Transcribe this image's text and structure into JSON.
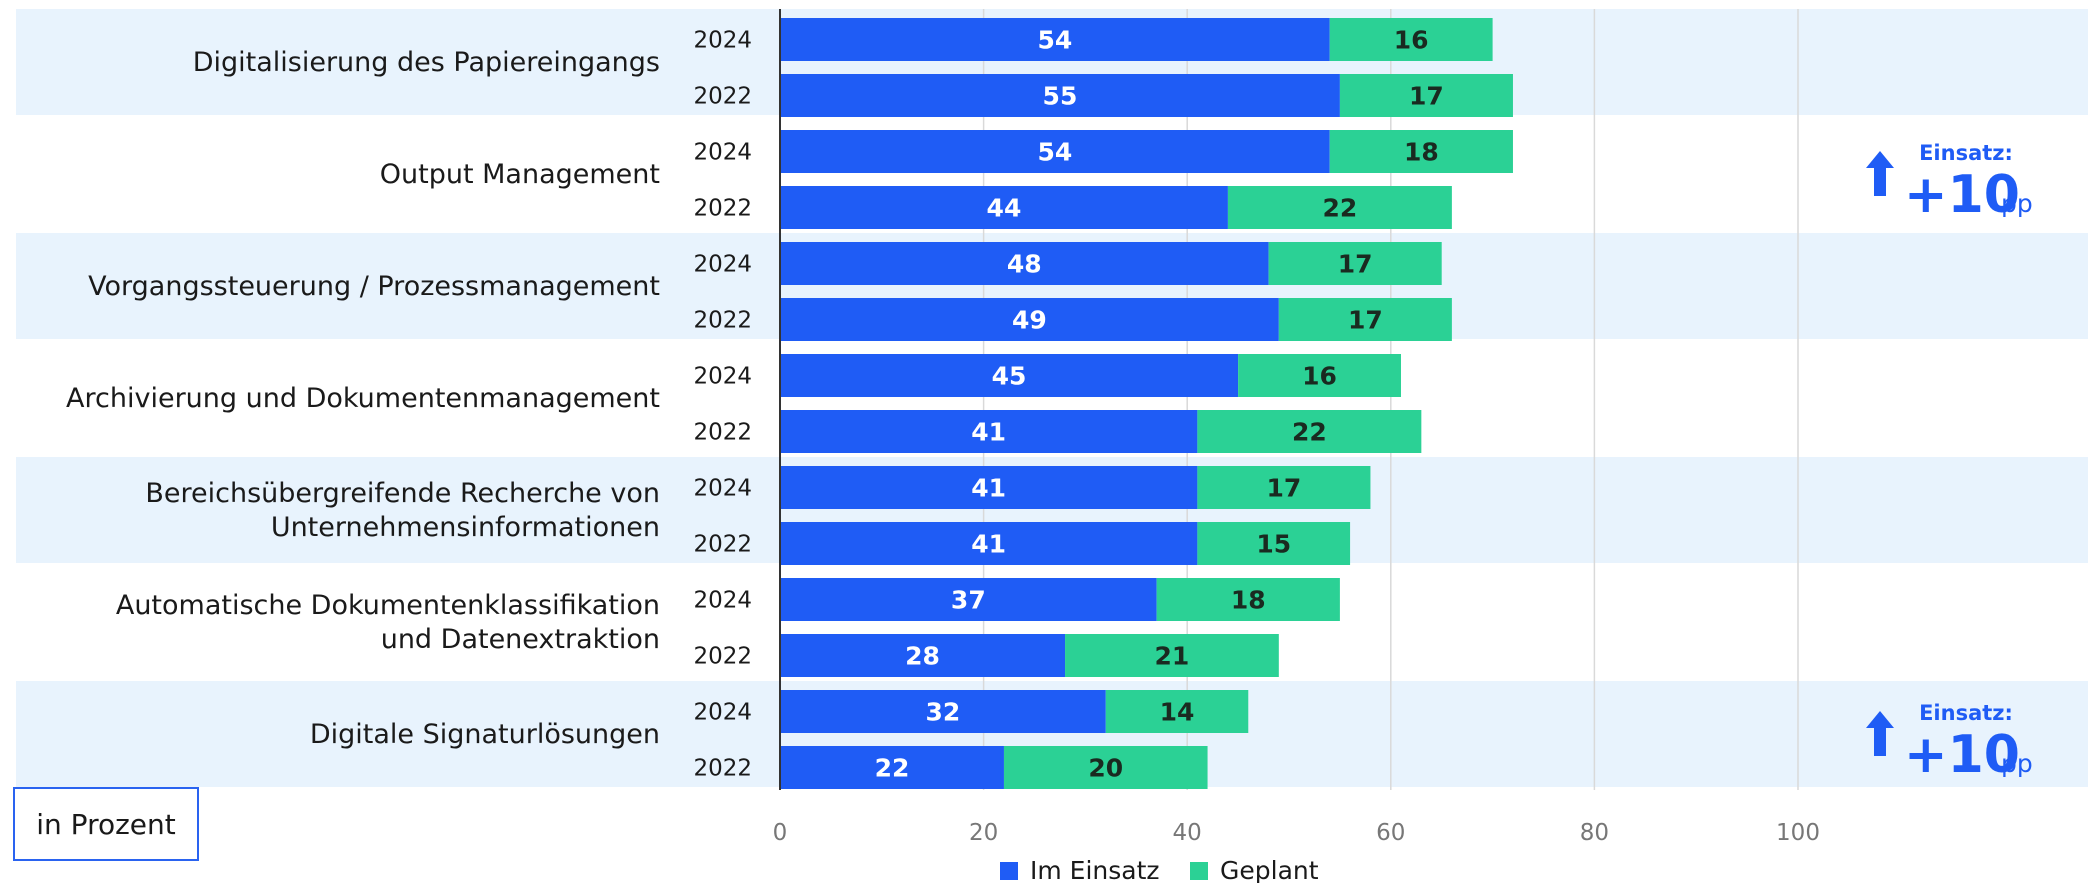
{
  "colors": {
    "im_einsatz": "#1f5cf5",
    "geplant": "#2bd195",
    "band": "#e8f3fd",
    "grid": "#d9d9d9",
    "accent": "#1f5cf5"
  },
  "unit_label": "in Prozent",
  "legend": [
    {
      "label": "Im Einsatz",
      "color": "#1f5cf5"
    },
    {
      "label": "Geplant",
      "color": "#2bd195"
    }
  ],
  "annotations": [
    {
      "header": "Einsatz:",
      "value": "+10",
      "unit": "pp",
      "icon": "arrow-up-icon",
      "category": "Output Management"
    },
    {
      "header": "Einsatz:",
      "value": "+10",
      "unit": "pp",
      "icon": "arrow-up-icon",
      "category": "Digitale Signaturlösungen"
    }
  ],
  "chart_data": {
    "type": "bar",
    "orientation": "horizontal",
    "stacked": true,
    "xlim": [
      0,
      100
    ],
    "x_ticks": [
      0,
      20,
      40,
      60,
      80,
      100
    ],
    "grid": true,
    "legend_position": "bottom",
    "series_names": [
      "Im Einsatz",
      "Geplant"
    ],
    "categories": [
      {
        "label": [
          "Digitalisierung des Papiereingangs"
        ],
        "bars": [
          {
            "year": "2024",
            "values": [
              54,
              16
            ]
          },
          {
            "year": "2022",
            "values": [
              55,
              17
            ]
          }
        ]
      },
      {
        "label": [
          "Output Management"
        ],
        "bars": [
          {
            "year": "2024",
            "values": [
              54,
              18
            ]
          },
          {
            "year": "2022",
            "values": [
              44,
              22
            ]
          }
        ]
      },
      {
        "label": [
          "Vorgangssteuerung / Prozessmanagement"
        ],
        "bars": [
          {
            "year": "2024",
            "values": [
              48,
              17
            ]
          },
          {
            "year": "2022",
            "values": [
              49,
              17
            ]
          }
        ]
      },
      {
        "label": [
          "Archivierung und Dokumentenmanagement"
        ],
        "bars": [
          {
            "year": "2024",
            "values": [
              45,
              16
            ]
          },
          {
            "year": "2022",
            "values": [
              41,
              22
            ]
          }
        ]
      },
      {
        "label": [
          "Bereichsübergreifende Recherche von",
          "Unternehmensinformationen"
        ],
        "bars": [
          {
            "year": "2024",
            "values": [
              41,
              17
            ]
          },
          {
            "year": "2022",
            "values": [
              41,
              15
            ]
          }
        ]
      },
      {
        "label": [
          "Automatische Dokumentenklassifikation",
          "und Datenextraktion"
        ],
        "bars": [
          {
            "year": "2024",
            "values": [
              37,
              18
            ]
          },
          {
            "year": "2022",
            "values": [
              28,
              21
            ]
          }
        ]
      },
      {
        "label": [
          "Digitale Signaturlösungen"
        ],
        "bars": [
          {
            "year": "2024",
            "values": [
              32,
              14
            ]
          },
          {
            "year": "2022",
            "values": [
              22,
              20
            ]
          }
        ]
      }
    ]
  }
}
